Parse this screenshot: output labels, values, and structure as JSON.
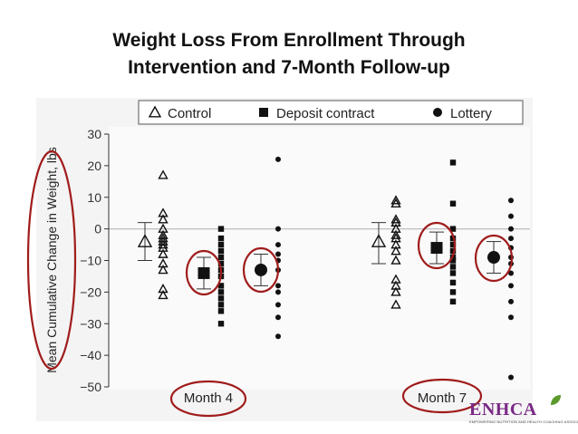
{
  "slide": {
    "title_line1": "Weight Loss From Enrollment Through",
    "title_line2": "Intervention and 7-Month Follow-up"
  },
  "logo": {
    "name": "ENHCA",
    "tagline": "EMPOWERING NUTRITION AND HEALTH COACHING ASSOCIATION"
  },
  "colors": {
    "highlight_circle": "#a01c1c",
    "marker": "#111111",
    "reference_line": "#bdbdbd",
    "logo": "#7a2a86"
  },
  "chart_data": {
    "type": "scatter",
    "title": "",
    "xlabel": "",
    "ylabel": "Mean Cumulative Change in Weight, lbs",
    "ylim": [
      -50,
      30
    ],
    "yticks": [
      30,
      20,
      10,
      0,
      -10,
      -20,
      -30,
      -40,
      -50
    ],
    "reference_line_y": 0,
    "legend": {
      "position": "top",
      "entries": [
        {
          "label": "Control",
          "marker": "triangle-open"
        },
        {
          "label": "Deposit contract",
          "marker": "square-filled"
        },
        {
          "label": "Lottery",
          "marker": "circle-filled"
        }
      ]
    },
    "categories": [
      "Month 4",
      "Month 7"
    ],
    "series": [
      {
        "name": "Control",
        "marker": "triangle-open",
        "mean": {
          "Month 4": -4,
          "Month 7": -4
        },
        "ci": {
          "Month 4": [
            -10,
            2
          ],
          "Month 7": [
            -11,
            2
          ]
        },
        "individuals": {
          "Month 4": [
            17,
            5,
            3,
            0,
            -2,
            -3,
            -4,
            -5,
            -6,
            -8,
            -11,
            -13,
            -19,
            -21
          ],
          "Month 7": [
            9,
            8,
            3,
            2,
            0,
            -2,
            -3,
            -5,
            -7,
            -10,
            -16,
            -18,
            -20,
            -24
          ]
        }
      },
      {
        "name": "Deposit contract",
        "marker": "square-filled",
        "mean": {
          "Month 4": -14,
          "Month 7": -6
        },
        "ci": {
          "Month 4": [
            -19,
            -9
          ],
          "Month 7": [
            -11,
            -1
          ]
        },
        "individuals": {
          "Month 4": [
            0,
            -3,
            -5,
            -7,
            -9,
            -11,
            -13,
            -15,
            -18,
            -20,
            -22,
            -24,
            -26,
            -30
          ],
          "Month 7": [
            21,
            8,
            0,
            -3,
            -5,
            -7,
            -9,
            -10,
            -12,
            -14,
            -17,
            -20,
            -23
          ]
        }
      },
      {
        "name": "Lottery",
        "marker": "circle-filled",
        "mean": {
          "Month 4": -13,
          "Month 7": -9
        },
        "ci": {
          "Month 4": [
            -18,
            -8
          ],
          "Month 7": [
            -14,
            -4
          ]
        },
        "individuals": {
          "Month 4": [
            22,
            0,
            -5,
            -8,
            -10,
            -13,
            -18,
            -20,
            -24,
            -28,
            -34
          ],
          "Month 7": [
            9,
            4,
            0,
            -3,
            -6,
            -9,
            -11,
            -14,
            -18,
            -23,
            -28,
            -47
          ]
        }
      }
    ]
  }
}
